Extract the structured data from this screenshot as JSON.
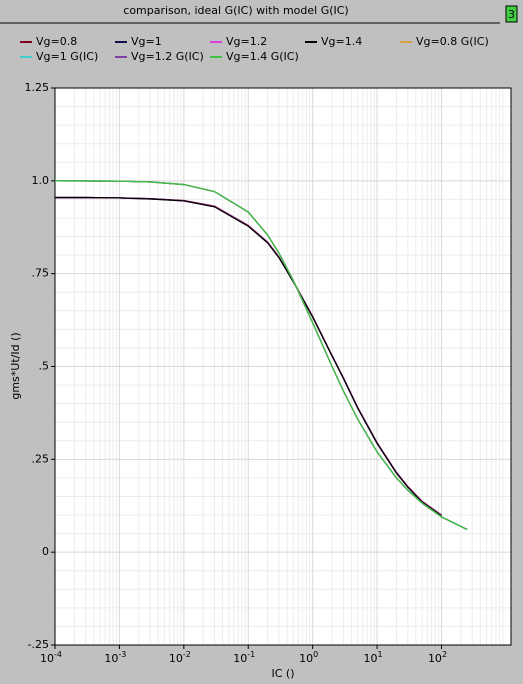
{
  "chart_data": {
    "type": "line",
    "title": "comparison, ideal G(IC) with model G(IC)",
    "badge": "3",
    "x_label": "IC ()",
    "y_label": "gms*Ut/Id ()",
    "x_scale": "log",
    "grid": true,
    "xlim": [
      0.0001,
      1200
    ],
    "ylim": [
      -0.25,
      1.25
    ],
    "xticks": [
      {
        "value": 0.0001,
        "label": "10",
        "exponent": "-4"
      },
      {
        "value": 0.001,
        "label": "10",
        "exponent": "-3"
      },
      {
        "value": 0.01,
        "label": "10",
        "exponent": "-2"
      },
      {
        "value": 0.1,
        "label": "10",
        "exponent": "-1"
      },
      {
        "value": 1,
        "label": "10",
        "exponent": "0"
      },
      {
        "value": 10,
        "label": "10",
        "exponent": "1"
      },
      {
        "value": 100,
        "label": "10",
        "exponent": "2"
      }
    ],
    "yticks": [
      {
        "value": 1.25,
        "label": "1.25"
      },
      {
        "value": 1.0,
        "label": "1.0"
      },
      {
        "value": 0.75,
        "label": ".75"
      },
      {
        "value": 0.5,
        "label": ".5"
      },
      {
        "value": 0.25,
        "label": ".25"
      },
      0,
      {
        "value": -0.25,
        "label": "-.25"
      }
    ],
    "x": [
      0.0001,
      0.0003,
      0.001,
      0.003,
      0.01,
      0.03,
      0.1,
      0.2,
      0.3,
      0.5,
      1,
      2,
      3,
      5,
      10,
      20,
      30,
      50,
      100,
      250
    ],
    "series": [
      {
        "name": "Vg=0.8",
        "color": "#800020",
        "values": [
          0.955,
          0.955,
          0.954,
          0.952,
          0.947,
          0.932,
          0.88,
          0.835,
          0.795,
          0.73,
          0.635,
          0.53,
          0.47,
          0.39,
          0.295,
          0.215,
          0.177,
          0.137,
          0.1,
          null
        ]
      },
      {
        "name": "Vg=1",
        "color": "#101050",
        "values": [
          0.955,
          0.955,
          0.954,
          0.952,
          0.946,
          0.931,
          0.879,
          0.834,
          0.794,
          0.729,
          0.634,
          0.529,
          0.469,
          0.389,
          0.294,
          0.214,
          0.176,
          0.136,
          0.099,
          null
        ]
      },
      {
        "name": "Vg=1.2",
        "color": "#e040e0",
        "values": [
          0.955,
          0.955,
          0.954,
          0.951,
          0.946,
          0.931,
          0.879,
          0.834,
          0.794,
          0.729,
          0.634,
          0.529,
          0.469,
          0.389,
          0.294,
          0.214,
          0.176,
          0.136,
          0.099,
          null
        ]
      },
      {
        "name": "Vg=1.4",
        "color": "#000000",
        "values": [
          0.955,
          0.955,
          0.954,
          0.951,
          0.946,
          0.93,
          0.878,
          0.833,
          0.793,
          0.728,
          0.633,
          0.528,
          0.468,
          0.388,
          0.293,
          0.213,
          0.175,
          0.135,
          0.098,
          null
        ]
      },
      {
        "name": "Vg=0.8 G(IC)",
        "color": "#d4a040",
        "values": [
          1.0,
          0.9997,
          0.999,
          0.997,
          0.99,
          0.971,
          0.916,
          0.854,
          0.805,
          0.732,
          0.618,
          0.5,
          0.434,
          0.358,
          0.27,
          0.2,
          0.167,
          0.132,
          0.095,
          0.061
        ]
      },
      {
        "name": "Vg=1 G(IC)",
        "color": "#40d0d0",
        "values": [
          1.0,
          0.9997,
          0.999,
          0.997,
          0.99,
          0.971,
          0.916,
          0.854,
          0.805,
          0.732,
          0.618,
          0.5,
          0.434,
          0.358,
          0.27,
          0.2,
          0.167,
          0.132,
          0.095,
          0.061
        ]
      },
      {
        "name": "Vg=1.2 G(IC)",
        "color": "#8040a0",
        "values": [
          1.0,
          0.9997,
          0.999,
          0.997,
          0.99,
          0.971,
          0.916,
          0.854,
          0.805,
          0.732,
          0.618,
          0.5,
          0.434,
          0.358,
          0.27,
          0.2,
          0.167,
          0.132,
          0.095,
          0.061
        ]
      },
      {
        "name": "Vg=1.4 G(IC)",
        "color": "#40c040",
        "values": [
          1.0,
          0.9997,
          0.999,
          0.997,
          0.99,
          0.971,
          0.916,
          0.854,
          0.805,
          0.732,
          0.618,
          0.5,
          0.434,
          0.358,
          0.27,
          0.2,
          0.167,
          0.132,
          0.095,
          0.061
        ]
      }
    ]
  }
}
